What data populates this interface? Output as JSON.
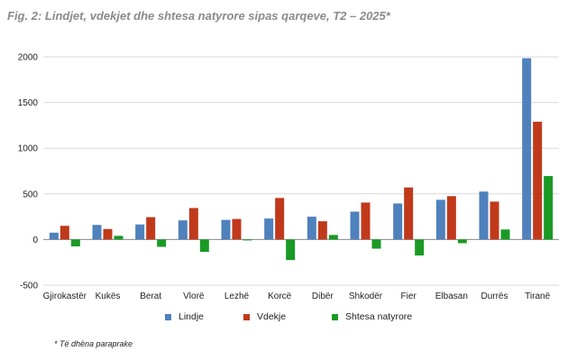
{
  "title": "Fig. 2:  Lindjet, vdekjet dhe shtesa natyrore sipas qarqeve, T2 – 2025*",
  "footnote": "* Të dhëna paraprake",
  "colors": {
    "lindje": "#4f81bd",
    "vdekje": "#c0391b",
    "shtesa": "#1a9a24",
    "grid": "#d9d9d9"
  },
  "chart_data": {
    "type": "bar",
    "title": "Lindjet, vdekjet dhe shtesa natyrore sipas qarqeve, T2 – 2025*",
    "xlabel": "",
    "ylabel": "",
    "ylim": [
      -500,
      2000
    ],
    "yticks": [
      "-500",
      "0",
      "500",
      "1000",
      "1500",
      "2000"
    ],
    "grid": true,
    "legend_position": "bottom",
    "categories": [
      "Gjirokastër",
      "Kukës",
      "Berat",
      "Vlorë",
      "Lezhë",
      "Korcë",
      "Dibër",
      "Shkodër",
      "Fier",
      "Elbasan",
      "Durrës",
      "Tiranë"
    ],
    "series": [
      {
        "name": "Lindje",
        "color": "#4f81bd",
        "values": [
          75,
          160,
          165,
          210,
          215,
          230,
          250,
          305,
          395,
          435,
          525,
          1985
        ]
      },
      {
        "name": "Vdekje",
        "color": "#c0391b",
        "values": [
          150,
          115,
          245,
          345,
          225,
          455,
          200,
          405,
          570,
          475,
          415,
          1290
        ]
      },
      {
        "name": "Shtesa natyrore",
        "color": "#1a9a24",
        "values": [
          -75,
          40,
          -80,
          -135,
          -10,
          -225,
          50,
          -100,
          -175,
          -40,
          110,
          695
        ]
      }
    ]
  }
}
